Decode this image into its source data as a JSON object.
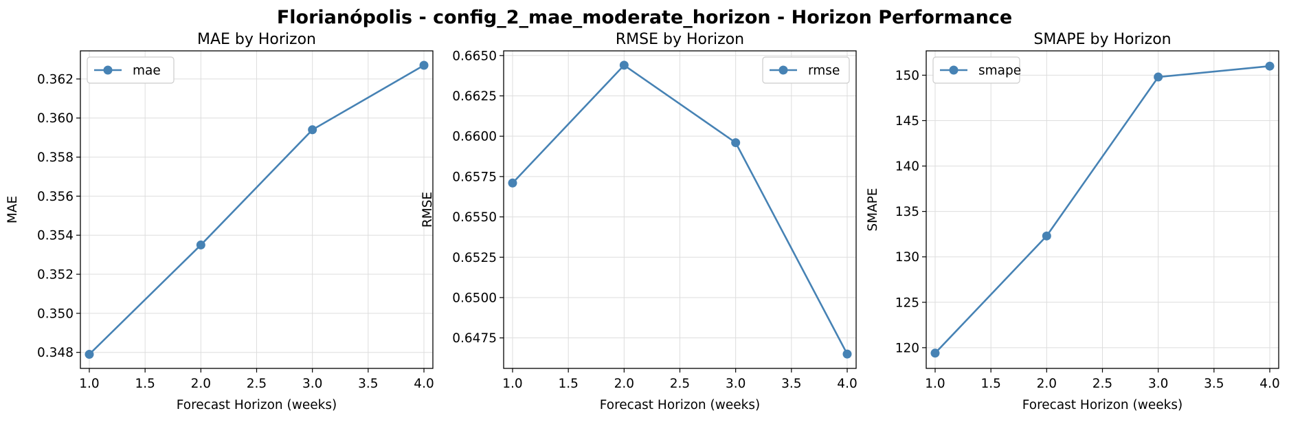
{
  "figure": {
    "title": "Florianópolis - config_2_mae_moderate_horizon - Horizon Performance",
    "line_color": "#4682b4"
  },
  "chart_data": [
    {
      "type": "line",
      "title": "MAE by Horizon",
      "xlabel": "Forecast Horizon (weeks)",
      "ylabel": "MAE",
      "x": [
        1.0,
        2.0,
        3.0,
        4.0
      ],
      "series": [
        {
          "name": "mae",
          "values": [
            0.3479,
            0.3535,
            0.3594,
            0.3627
          ]
        }
      ],
      "xlim": [
        0.92,
        4.08
      ],
      "ylim": [
        0.34718,
        0.36344
      ],
      "xticks": [
        "1.0",
        "1.5",
        "2.0",
        "2.5",
        "3.0",
        "3.5",
        "4.0"
      ],
      "yticks": [
        "0.348",
        "0.350",
        "0.352",
        "0.354",
        "0.356",
        "0.358",
        "0.360",
        "0.362"
      ],
      "grid": true,
      "legend": "upper-left"
    },
    {
      "type": "line",
      "title": "RMSE by Horizon",
      "xlabel": "Forecast Horizon (weeks)",
      "ylabel": "RMSE",
      "x": [
        1.0,
        2.0,
        3.0,
        4.0
      ],
      "series": [
        {
          "name": "rmse",
          "values": [
            0.6571,
            0.6644,
            0.6596,
            0.6465
          ]
        }
      ],
      "xlim": [
        0.92,
        4.08
      ],
      "ylim": [
        0.64561,
        0.66529
      ],
      "xticks": [
        "1.0",
        "1.5",
        "2.0",
        "2.5",
        "3.0",
        "3.5",
        "4.0"
      ],
      "yticks": [
        "0.6475",
        "0.6500",
        "0.6525",
        "0.6550",
        "0.6575",
        "0.6600",
        "0.6625",
        "0.6650"
      ],
      "grid": true,
      "legend": "upper-right"
    },
    {
      "type": "line",
      "title": "SMAPE by Horizon",
      "xlabel": "Forecast Horizon (weeks)",
      "ylabel": "SMAPE",
      "x": [
        1.0,
        2.0,
        3.0,
        4.0
      ],
      "series": [
        {
          "name": "smape",
          "values": [
            119.4,
            132.3,
            149.8,
            151.0
          ]
        }
      ],
      "xlim": [
        0.92,
        4.08
      ],
      "ylim": [
        117.72,
        152.68
      ],
      "xticks": [
        "1.0",
        "1.5",
        "2.0",
        "2.5",
        "3.0",
        "3.5",
        "4.0"
      ],
      "yticks": [
        "120",
        "125",
        "130",
        "135",
        "140",
        "145",
        "150"
      ],
      "grid": true,
      "legend": "upper-left"
    }
  ]
}
